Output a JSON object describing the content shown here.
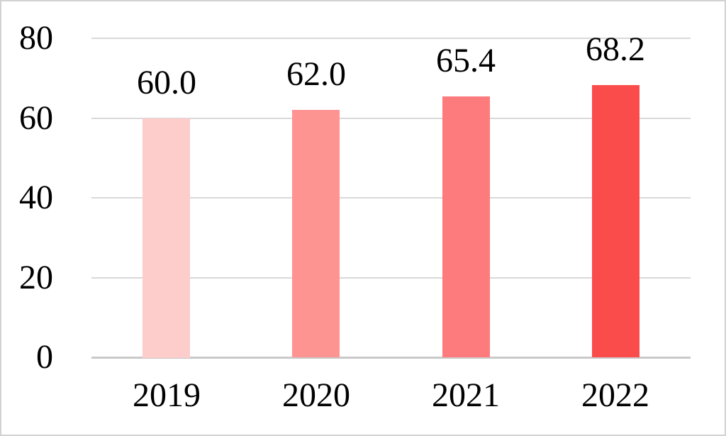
{
  "chart_data": {
    "type": "bar",
    "title": "",
    "xlabel": "",
    "ylabel": "",
    "categories": [
      "2019",
      "2020",
      "2021",
      "2022"
    ],
    "values": [
      60.0,
      62.0,
      65.4,
      68.2
    ],
    "data_labels": [
      "60.0",
      "62.0",
      "65.4",
      "68.2"
    ],
    "bar_colors": [
      "#FCCDCB",
      "#FD9492",
      "#FD7A7D",
      "#FB4C4C"
    ],
    "ylim": [
      0,
      80
    ],
    "yticks": [
      0,
      20,
      40,
      60,
      80
    ],
    "ytick_labels": [
      "0",
      "20",
      "40",
      "60",
      "80"
    ],
    "grid": true,
    "legend": false,
    "gridline_color": "#D9D9D9",
    "axis_line_color": "#C9C9C9",
    "text_color": "#000000",
    "background_color": "#FFFFFF",
    "frame_border_color": "#D2D2D2"
  }
}
